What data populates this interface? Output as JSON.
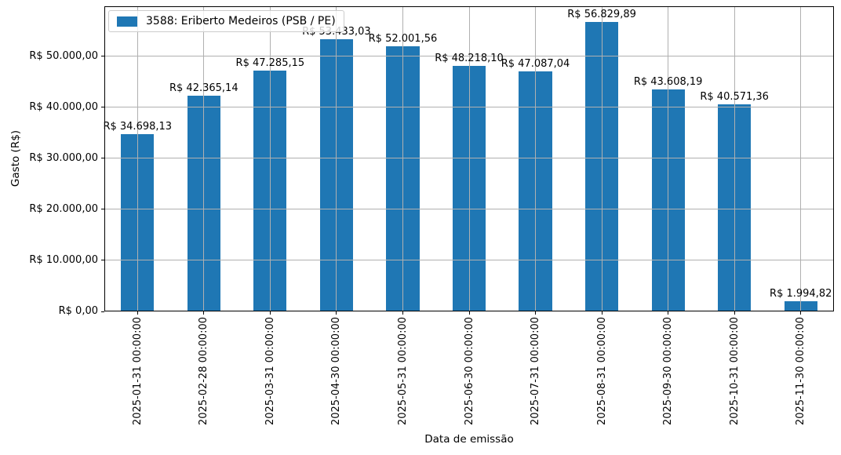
{
  "chart_data": {
    "type": "bar",
    "title": "",
    "xlabel": "Data de emissão",
    "ylabel": "Gasto (R$)",
    "legend": {
      "label": "3588: Eriberto Medeiros (PSB / PE)",
      "position": "upper left"
    },
    "bar_color": "#1f77b4",
    "grid": true,
    "grid_color": "#b0b0b0",
    "ylim": [
      0,
      59846
    ],
    "categories": [
      "2025-01-31 00:00:00",
      "2025-02-28 00:00:00",
      "2025-03-31 00:00:00",
      "2025-04-30 00:00:00",
      "2025-05-31 00:00:00",
      "2025-06-30 00:00:00",
      "2025-07-31 00:00:00",
      "2025-08-31 00:00:00",
      "2025-09-30 00:00:00",
      "2025-10-31 00:00:00",
      "2025-11-30 00:00:00"
    ],
    "values": [
      34698.13,
      42365.14,
      47285.15,
      53433.03,
      52001.56,
      48218.1,
      47087.04,
      56829.89,
      43608.19,
      40571.36,
      1994.82
    ],
    "value_labels": [
      "R$ 34.698,13",
      "R$ 42.365,14",
      "R$ 47.285,15",
      "R$ 53.433,03",
      "R$ 52.001,56",
      "R$ 48.218,10",
      "R$ 47.087,04",
      "R$ 56.829,89",
      "R$ 43.608,19",
      "R$ 40.571,36",
      "R$ 1.994,82"
    ],
    "ytick_values": [
      0,
      10000,
      20000,
      30000,
      40000,
      50000
    ],
    "ytick_labels": [
      "R$ 0,00",
      "R$ 10.000,00",
      "R$ 20.000,00",
      "R$ 30.000,00",
      "R$ 40.000,00",
      "R$ 50.000,00"
    ]
  }
}
